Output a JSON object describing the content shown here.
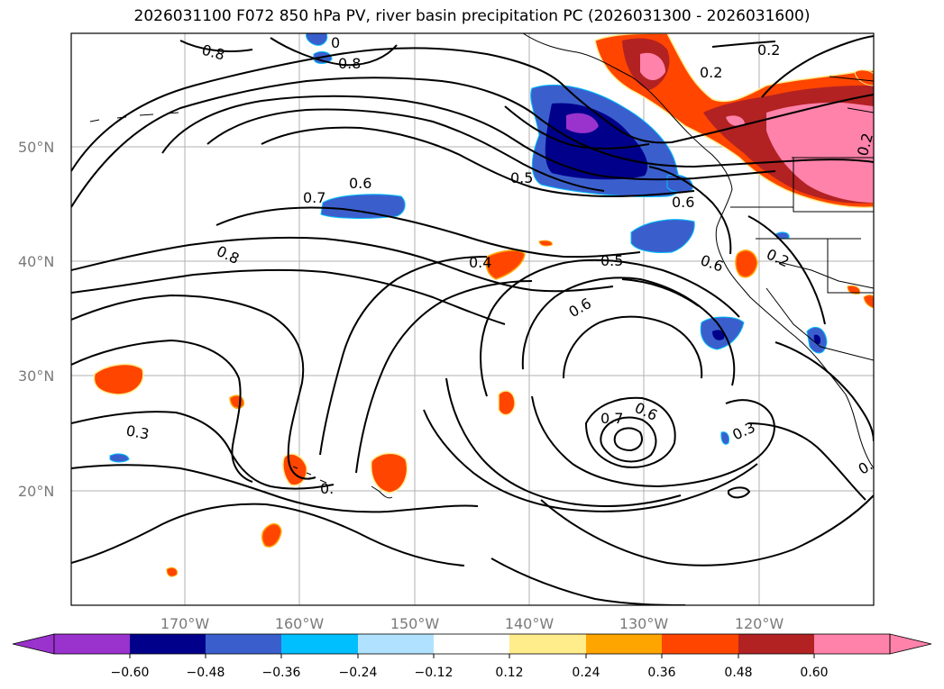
{
  "title": "2026031100 F072 850 hPa PV, river basin precipitation PC (2026031300 - 2026031600)",
  "lat_labels": [
    "50°N",
    "40°N",
    "30°N",
    "20°N"
  ],
  "lon_labels": [
    "170°W",
    "160°W",
    "150°W",
    "140°W",
    "130°W",
    "120°W"
  ],
  "contour_labels": [
    "0.8",
    "0.8",
    "0.8",
    "0.7",
    "0.6",
    "0.5",
    "0.6",
    "0.4",
    "0.5",
    "0.6",
    "0.6",
    "0.2",
    "0.2",
    "0.2",
    "0.3",
    "0.7",
    "0.6",
    "0.3",
    "0.",
    "0.",
    "0",
    "0.2"
  ],
  "colorbar": {
    "ticks": [
      "−0.60",
      "−0.48",
      "−0.36",
      "−0.24",
      "−0.12",
      "0.12",
      "0.24",
      "0.36",
      "0.48",
      "0.60"
    ],
    "colors": [
      "#9a32cd",
      "#00008b",
      "#3a5fcd",
      "#00bfff",
      "#b0e2ff",
      "#ffffff",
      "#ffec8b",
      "#ffa500",
      "#ff4500",
      "#b22222",
      "#ff82ab",
      "#ff82ab"
    ],
    "under_color": "#9a32cd",
    "over_color": "#ff82ab"
  }
}
